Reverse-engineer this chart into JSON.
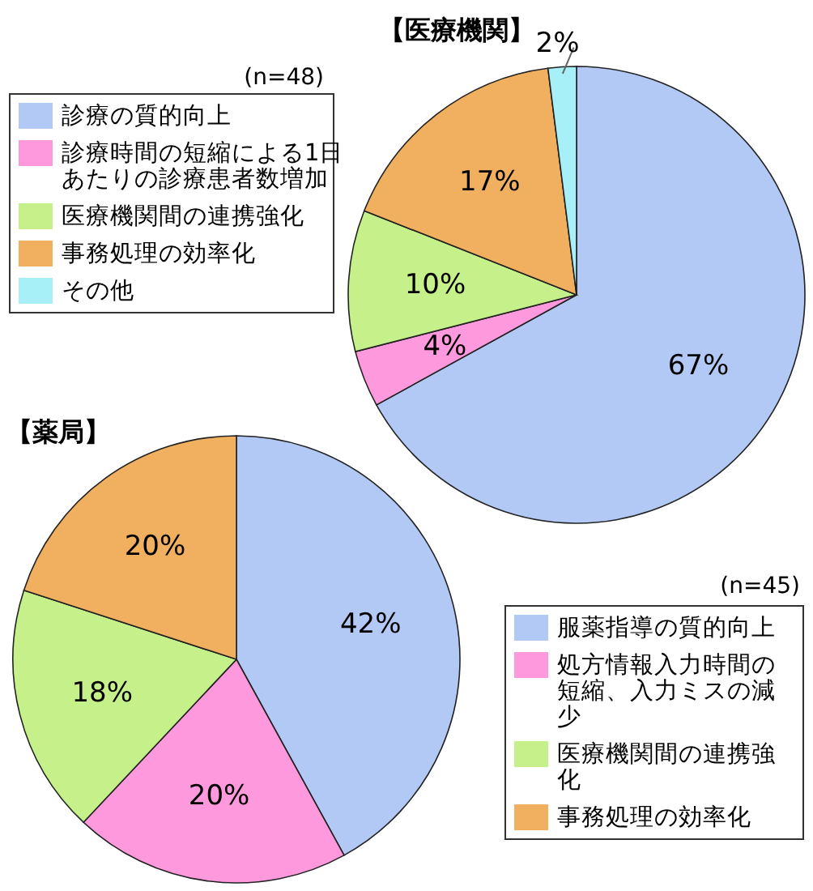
{
  "chart_data": [
    {
      "type": "pie",
      "title": "【医療機関】",
      "annotations": [
        "(n=48)"
      ],
      "legend": "left",
      "categories": [
        "診療の質的向上",
        "診療時間の短縮による1日あたりの診療患者数増加",
        "医療機関間の連携強化",
        "事務処理の効率化",
        "その他"
      ],
      "values": [
        67,
        4,
        10,
        17,
        2
      ],
      "colors": [
        "#b3c9f5",
        "#ff99dd",
        "#c6f08a",
        "#f0b060",
        "#a8f0f8"
      ],
      "value_labels": [
        "67%",
        "4%",
        "10%",
        "17%",
        "2%"
      ]
    },
    {
      "type": "pie",
      "title": "【薬局】",
      "annotations": [
        "(n=45)"
      ],
      "legend": "bottom right",
      "categories": [
        "服薬指導の質的向上",
        "処方情報入力時間の短縮、入力ミスの減少",
        "医療機関間の連携強化",
        "事務処理の効率化"
      ],
      "values": [
        42,
        20,
        18,
        20
      ],
      "colors": [
        "#b3c9f5",
        "#ff99dd",
        "#c6f08a",
        "#f0b060"
      ],
      "value_labels": [
        "42%",
        "20%",
        "18%",
        "20%"
      ]
    }
  ]
}
